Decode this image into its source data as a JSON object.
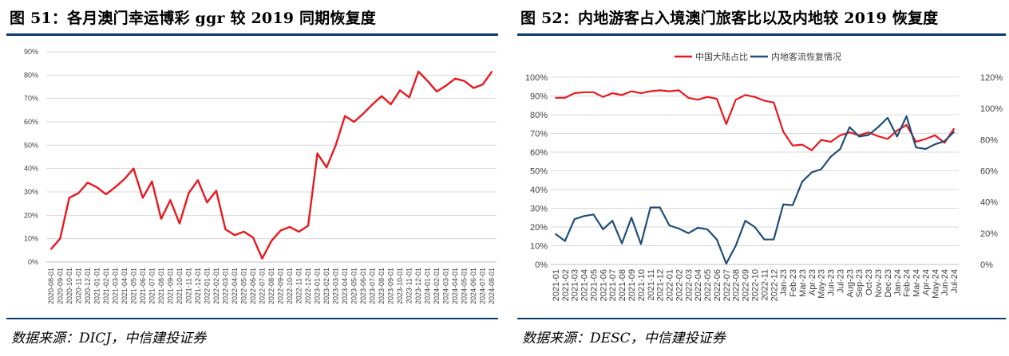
{
  "fig51": {
    "title": "图 51：各月澳门幸运博彩 ggr 较 2019 同期恢复度",
    "source": "数据来源：DICJ，中信建投证券",
    "chart_data": {
      "type": "line",
      "title": "各月澳门幸运博彩 ggr 较 2019 同期恢复度",
      "xlabel": "",
      "ylabel": "",
      "ylim": [
        0,
        90
      ],
      "yticks": [
        "0%",
        "10%",
        "20%",
        "30%",
        "40%",
        "50%",
        "60%",
        "70%",
        "80%",
        "90%"
      ],
      "grid": true,
      "categories": [
        "2020-08-01",
        "2020-09-01",
        "2020-10-01",
        "2020-11-01",
        "2020-12-01",
        "2021-01-01",
        "2021-02-01",
        "2021-03-01",
        "2021-04-01",
        "2021-05-01",
        "2021-06-01",
        "2021-07-01",
        "2021-08-01",
        "2021-09-01",
        "2021-10-01",
        "2021-11-01",
        "2021-12-01",
        "2022-01-01",
        "2022-02-01",
        "2022-03-01",
        "2022-04-01",
        "2022-05-01",
        "2022-06-01",
        "2022-07-01",
        "2022-08-01",
        "2022-09-01",
        "2022-10-01",
        "2022-11-01",
        "2022-12-01",
        "2023-01-01",
        "2023-02-01",
        "2023-03-01",
        "2023-04-01",
        "2023-05-01",
        "2023-06-01",
        "2023-07-01",
        "2023-08-01",
        "2023-09-01",
        "2023-10-01",
        "2023-11-01",
        "2023-12-01",
        "2024-01-01",
        "2024-02-01",
        "2024-03-01",
        "2024-04-01",
        "2024-05-01",
        "2024-06-01",
        "2024-07-01",
        "2024-08-01"
      ],
      "series": [
        {
          "name": "恢复度",
          "color": "#e8191e",
          "values": [
            5.5,
            10,
            27.5,
            29.5,
            34,
            32,
            29,
            32,
            35.5,
            40,
            27.5,
            34.5,
            18.5,
            26.5,
            16.5,
            29.5,
            35,
            25.5,
            30.5,
            14,
            11.5,
            13,
            10.5,
            1.5,
            9,
            13.5,
            15,
            13,
            15.5,
            46.5,
            40.5,
            50,
            62.5,
            60,
            63.5,
            67.5,
            71,
            67.5,
            73.5,
            70.5,
            81.5,
            77.5,
            73,
            75.5,
            78.5,
            77.5,
            74.5,
            76,
            81.5
          ]
        }
      ]
    }
  },
  "fig52": {
    "title": "图 52：内地游客占入境澳门旅客比以及内地较 2019 恢复度",
    "source": "数据来源：DESC，中信建投证券",
    "chart_data": {
      "type": "line",
      "title": "内地游客占入境澳门旅客比以及内地较 2019 恢复度",
      "legend_position": "top",
      "grid": true,
      "categories": [
        "2021-01",
        "2021-02",
        "2021-03",
        "2021-04",
        "2021-05",
        "2021-06",
        "2021-07",
        "2021-08",
        "2021-09",
        "2021-10",
        "2021-11",
        "2021-12",
        "2022-01",
        "2022-02",
        "2022-03",
        "2022-04",
        "2022-05",
        "2022-06",
        "2022-07",
        "2022-08",
        "2022-09",
        "2022-10",
        "2022-11",
        "2022-12",
        "Jan-23",
        "Feb-23",
        "Mar-23",
        "Apr-23",
        "May-23",
        "Jun-23",
        "Jul-23",
        "Aug-23",
        "Sep-23",
        "Oct-23",
        "Nov-23",
        "Dec-23",
        "Jan-24",
        "Feb-24",
        "Mar-24",
        "Apr-24",
        "May-24",
        "Jun-24",
        "Jul-24"
      ],
      "y_left": {
        "ylim": [
          0,
          100
        ],
        "ticks": [
          "0%",
          "10%",
          "20%",
          "30%",
          "40%",
          "50%",
          "60%",
          "70%",
          "80%",
          "90%",
          "100%"
        ]
      },
      "y_right": {
        "ylim": [
          0,
          120
        ],
        "ticks": [
          "0%",
          "20%",
          "40%",
          "60%",
          "80%",
          "100%",
          "120%"
        ]
      },
      "series": [
        {
          "name": "中国大陆占比",
          "axis": "left",
          "color": "#e8191e",
          "values": [
            89,
            89,
            91.5,
            92,
            92,
            89.5,
            91.5,
            90.5,
            92.5,
            91.5,
            92.5,
            93,
            92.5,
            93,
            89,
            88,
            89.5,
            88.5,
            75,
            88,
            90.5,
            89.5,
            87.5,
            86.5,
            71,
            63.5,
            64,
            61,
            66.5,
            65.5,
            69,
            70.5,
            69,
            70.5,
            68.5,
            67,
            71.5,
            74.5,
            65.5,
            67,
            69,
            65,
            72.5
          ]
        },
        {
          "name": "内地客流恢复情况",
          "axis": "right",
          "color": "#1f4e79",
          "values": [
            19.5,
            15,
            29,
            31,
            32,
            22.5,
            28,
            13.5,
            30,
            13,
            36.5,
            36.5,
            25,
            23,
            20,
            23.5,
            22.5,
            16,
            0.5,
            12,
            28,
            24,
            16,
            16,
            38.5,
            38,
            53,
            59,
            61,
            69,
            74,
            88,
            82,
            83,
            88,
            94,
            82,
            95,
            75,
            74,
            77,
            79,
            85
          ]
        }
      ]
    }
  }
}
